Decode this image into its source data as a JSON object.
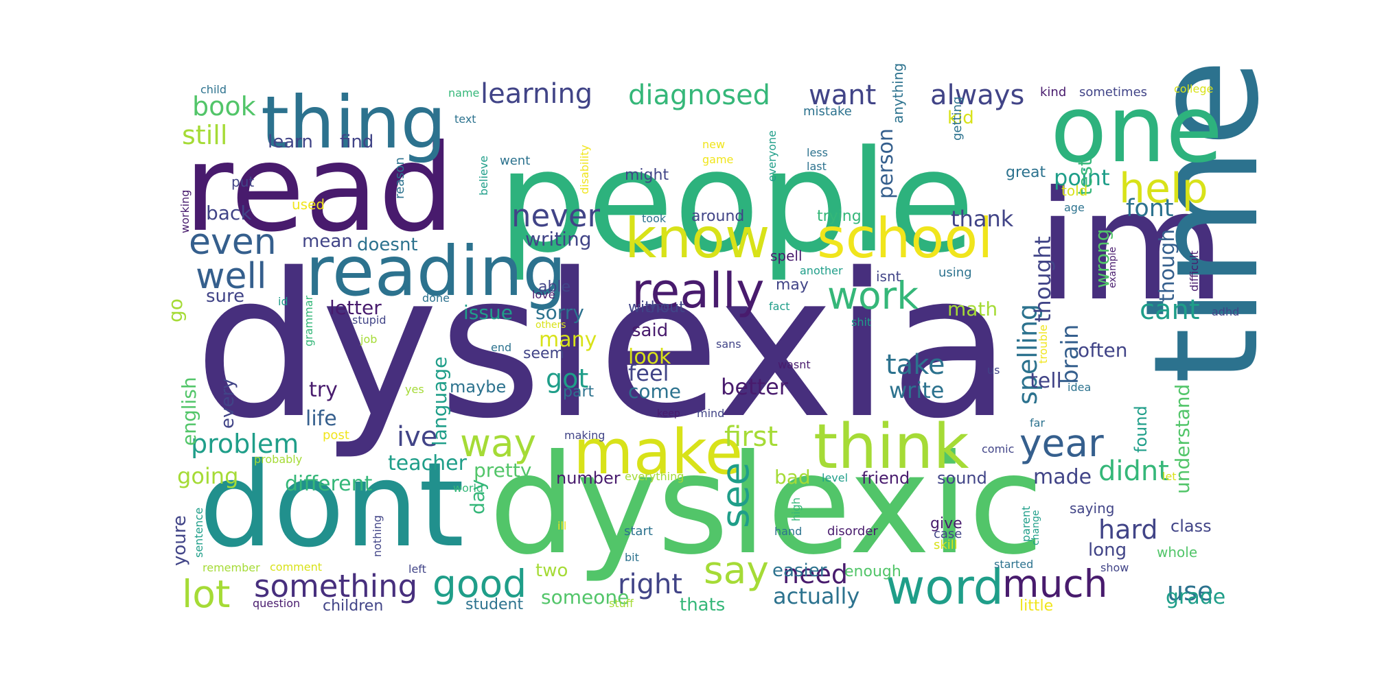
{
  "palette": {
    "dark_purple": "#472f7d",
    "deep_purple": "#481b6d",
    "indigo": "#414487",
    "blue": "#355f8d",
    "slate": "#2c728e",
    "teal": "#21908d",
    "sea": "#1f9e89",
    "green": "#2db27d",
    "mint": "#35b779",
    "light_green": "#52c569",
    "lime": "#a5db36",
    "yellow": "#d8e219",
    "bright_yellow": "#f0e51c"
  },
  "words": [
    {
      "text": "dyslexia",
      "c": "dark_purple"
    },
    {
      "text": "people",
      "c": "green"
    },
    {
      "text": "read",
      "c": "deep_purple"
    },
    {
      "text": "dyslexic",
      "c": "light_green"
    },
    {
      "text": "dont",
      "c": "teal"
    },
    {
      "text": "im",
      "c": "dark_purple"
    },
    {
      "text": "time",
      "c": "slate"
    },
    {
      "text": "one",
      "c": "green"
    },
    {
      "text": "thing",
      "c": "slate"
    },
    {
      "text": "reading",
      "c": "slate"
    },
    {
      "text": "know",
      "c": "yellow"
    },
    {
      "text": "school",
      "c": "bright_yellow"
    },
    {
      "text": "think",
      "c": "lime"
    },
    {
      "text": "make",
      "c": "yellow"
    },
    {
      "text": "word",
      "c": "sea"
    },
    {
      "text": "really",
      "c": "deep_purple"
    },
    {
      "text": "help",
      "c": "yellow"
    },
    {
      "text": "work",
      "c": "mint"
    },
    {
      "text": "year",
      "c": "blue"
    },
    {
      "text": "much",
      "c": "deep_purple"
    },
    {
      "text": "way",
      "c": "lime"
    },
    {
      "text": "good",
      "c": "sea"
    },
    {
      "text": "something",
      "c": "dark_purple"
    },
    {
      "text": "lot",
      "c": "lime"
    },
    {
      "text": "say",
      "c": "lime"
    },
    {
      "text": "even",
      "c": "blue"
    },
    {
      "text": "well",
      "c": "blue"
    },
    {
      "text": "never",
      "c": "indigo"
    },
    {
      "text": "learning",
      "c": "indigo"
    },
    {
      "text": "diagnosed",
      "c": "mint"
    },
    {
      "text": "want",
      "c": "indigo"
    },
    {
      "text": "always",
      "c": "indigo"
    },
    {
      "text": "book",
      "c": "light_green"
    },
    {
      "text": "still",
      "c": "lime"
    },
    {
      "text": "problem",
      "c": "sea"
    },
    {
      "text": "going",
      "c": "lime"
    },
    {
      "text": "different",
      "c": "mint"
    },
    {
      "text": "teacher",
      "c": "sea"
    },
    {
      "text": "pretty",
      "c": "light_green"
    },
    {
      "text": "ive",
      "c": "indigo"
    },
    {
      "text": "first",
      "c": "lime"
    },
    {
      "text": "see",
      "c": "sea"
    },
    {
      "text": "right",
      "c": "indigo"
    },
    {
      "text": "need",
      "c": "deep_purple"
    },
    {
      "text": "actually",
      "c": "slate"
    },
    {
      "text": "use",
      "c": "slate"
    },
    {
      "text": "grade",
      "c": "sea"
    },
    {
      "text": "hard",
      "c": "indigo"
    },
    {
      "text": "didnt",
      "c": "mint"
    },
    {
      "text": "made",
      "c": "indigo"
    },
    {
      "text": "cant",
      "c": "sea"
    },
    {
      "text": "font",
      "c": "slate"
    },
    {
      "text": "point",
      "c": "sea"
    },
    {
      "text": "thank",
      "c": "indigo"
    },
    {
      "text": "take",
      "c": "slate"
    },
    {
      "text": "write",
      "c": "slate"
    },
    {
      "text": "spelling",
      "c": "slate"
    },
    {
      "text": "brain",
      "c": "blue"
    },
    {
      "text": "thought",
      "c": "indigo"
    },
    {
      "text": "though",
      "c": "blue"
    },
    {
      "text": "understand",
      "c": "light_green"
    },
    {
      "text": "found",
      "c": "sea"
    },
    {
      "text": "often",
      "c": "indigo"
    },
    {
      "text": "tell",
      "c": "indigo"
    },
    {
      "text": "math",
      "c": "lime"
    },
    {
      "text": "wrong",
      "c": "light_green"
    },
    {
      "text": "test",
      "c": "mint"
    },
    {
      "text": "kid",
      "c": "yellow"
    },
    {
      "text": "person",
      "c": "blue"
    },
    {
      "text": "better",
      "c": "deep_purple"
    },
    {
      "text": "feel",
      "c": "indigo"
    },
    {
      "text": "come",
      "c": "slate"
    },
    {
      "text": "look",
      "c": "yellow"
    },
    {
      "text": "said",
      "c": "deep_purple"
    },
    {
      "text": "got",
      "c": "sea"
    },
    {
      "text": "many",
      "c": "yellow"
    },
    {
      "text": "sorry",
      "c": "slate"
    },
    {
      "text": "issue",
      "c": "sea"
    },
    {
      "text": "letter",
      "c": "deep_purple"
    },
    {
      "text": "try",
      "c": "deep_purple"
    },
    {
      "text": "life",
      "c": "blue"
    },
    {
      "text": "every",
      "c": "indigo"
    },
    {
      "text": "english",
      "c": "light_green"
    },
    {
      "text": "go",
      "c": "lime"
    },
    {
      "text": "sure",
      "c": "indigo"
    },
    {
      "text": "back",
      "c": "indigo"
    },
    {
      "text": "mean",
      "c": "indigo"
    },
    {
      "text": "doesnt",
      "c": "slate"
    },
    {
      "text": "writing",
      "c": "indigo"
    },
    {
      "text": "learn",
      "c": "indigo"
    },
    {
      "text": "find",
      "c": "indigo"
    },
    {
      "text": "language",
      "c": "sea"
    },
    {
      "text": "day",
      "c": "mint"
    },
    {
      "text": "youre",
      "c": "indigo"
    },
    {
      "text": "someone",
      "c": "light_green"
    },
    {
      "text": "thats",
      "c": "mint"
    },
    {
      "text": "two",
      "c": "lime"
    },
    {
      "text": "children",
      "c": "indigo"
    },
    {
      "text": "student",
      "c": "slate"
    },
    {
      "text": "number",
      "c": "deep_purple"
    },
    {
      "text": "bad",
      "c": "lime"
    },
    {
      "text": "friend",
      "c": "deep_purple"
    },
    {
      "text": "sound",
      "c": "indigo"
    },
    {
      "text": "easier",
      "c": "slate"
    },
    {
      "text": "enough",
      "c": "light_green"
    },
    {
      "text": "long",
      "c": "indigo"
    },
    {
      "text": "class",
      "c": "indigo"
    },
    {
      "text": "whole",
      "c": "light_green"
    },
    {
      "text": "give",
      "c": "deep_purple"
    },
    {
      "text": "case",
      "c": "indigo"
    },
    {
      "text": "skill",
      "c": "yellow"
    },
    {
      "text": "saying",
      "c": "indigo"
    },
    {
      "text": "little",
      "c": "bright_yellow"
    },
    {
      "text": "maybe",
      "c": "slate"
    },
    {
      "text": "part",
      "c": "slate"
    },
    {
      "text": "seem",
      "c": "indigo"
    },
    {
      "text": "able",
      "c": "indigo"
    },
    {
      "text": "mistake",
      "c": "slate"
    },
    {
      "text": "anything",
      "c": "slate"
    },
    {
      "text": "getting",
      "c": "slate"
    },
    {
      "text": "everyone",
      "c": "sea"
    },
    {
      "text": "less",
      "c": "slate"
    },
    {
      "text": "last",
      "c": "slate"
    },
    {
      "text": "great",
      "c": "slate"
    },
    {
      "text": "told",
      "c": "yellow"
    },
    {
      "text": "age",
      "c": "slate"
    },
    {
      "text": "kind",
      "c": "deep_purple"
    },
    {
      "text": "sometimes",
      "c": "indigo"
    },
    {
      "text": "college",
      "c": "yellow"
    },
    {
      "text": "trying",
      "c": "mint"
    },
    {
      "text": "around",
      "c": "indigo"
    },
    {
      "text": "might",
      "c": "indigo"
    },
    {
      "text": "took",
      "c": "slate"
    },
    {
      "text": "spell",
      "c": "deep_purple"
    },
    {
      "text": "may",
      "c": "indigo"
    },
    {
      "text": "isnt",
      "c": "indigo"
    },
    {
      "text": "using",
      "c": "slate"
    },
    {
      "text": "another",
      "c": "sea"
    },
    {
      "text": "without",
      "c": "indigo"
    },
    {
      "text": "type",
      "c": "indigo"
    },
    {
      "text": "fact",
      "c": "sea"
    },
    {
      "text": "shit",
      "c": "sea"
    },
    {
      "text": "love",
      "c": "deep_purple"
    },
    {
      "text": "done",
      "c": "slate"
    },
    {
      "text": "id",
      "c": "sea"
    },
    {
      "text": "stupid",
      "c": "indigo"
    },
    {
      "text": "others",
      "c": "yellow"
    },
    {
      "text": "job",
      "c": "lime"
    },
    {
      "text": "end",
      "c": "slate"
    },
    {
      "text": "yes",
      "c": "lime"
    },
    {
      "text": "sans",
      "c": "indigo"
    },
    {
      "text": "wasnt",
      "c": "deep_purple"
    },
    {
      "text": "us",
      "c": "indigo"
    },
    {
      "text": "idea",
      "c": "slate"
    },
    {
      "text": "trouble",
      "c": "bright_yellow"
    },
    {
      "text": "example",
      "c": "deep_purple"
    },
    {
      "text": "difficult",
      "c": "deep_purple"
    },
    {
      "text": "adhd",
      "c": "indigo"
    },
    {
      "text": "keep",
      "c": "deep_purple"
    },
    {
      "text": "mind",
      "c": "indigo"
    },
    {
      "text": "making",
      "c": "indigo"
    },
    {
      "text": "far",
      "c": "slate"
    },
    {
      "text": "comic",
      "c": "indigo"
    },
    {
      "text": "post",
      "c": "bright_yellow"
    },
    {
      "text": "probably",
      "c": "lime"
    },
    {
      "text": "world",
      "c": "mint"
    },
    {
      "text": "everything",
      "c": "lime"
    },
    {
      "text": "level",
      "c": "sea"
    },
    {
      "text": "let",
      "c": "yellow"
    },
    {
      "text": "high",
      "c": "mint"
    },
    {
      "text": "hand",
      "c": "slate"
    },
    {
      "text": "disorder",
      "c": "deep_purple"
    },
    {
      "text": "start",
      "c": "slate"
    },
    {
      "text": "bit",
      "c": "slate"
    },
    {
      "text": "ill",
      "c": "bright_yellow"
    },
    {
      "text": "parent",
      "c": "sea"
    },
    {
      "text": "change",
      "c": "sea"
    },
    {
      "text": "started",
      "c": "slate"
    },
    {
      "text": "show",
      "c": "indigo"
    },
    {
      "text": "stuff",
      "c": "lime"
    },
    {
      "text": "question",
      "c": "deep_purple"
    },
    {
      "text": "left",
      "c": "indigo"
    },
    {
      "text": "remember",
      "c": "lime"
    },
    {
      "text": "comment",
      "c": "yellow"
    },
    {
      "text": "nothing",
      "c": "indigo"
    },
    {
      "text": "sentence",
      "c": "sea"
    },
    {
      "text": "grammar",
      "c": "mint"
    },
    {
      "text": "put",
      "c": "indigo"
    },
    {
      "text": "used",
      "c": "bright_yellow"
    },
    {
      "text": "working",
      "c": "deep_purple"
    },
    {
      "text": "child",
      "c": "slate"
    },
    {
      "text": "name",
      "c": "mint"
    },
    {
      "text": "text",
      "c": "slate"
    },
    {
      "text": "reason",
      "c": "slate"
    },
    {
      "text": "believe",
      "c": "sea"
    },
    {
      "text": "went",
      "c": "slate"
    },
    {
      "text": "disability",
      "c": "bright_yellow"
    },
    {
      "text": "new",
      "c": "bright_yellow"
    },
    {
      "text": "game",
      "c": "bright_yellow"
    }
  ]
}
